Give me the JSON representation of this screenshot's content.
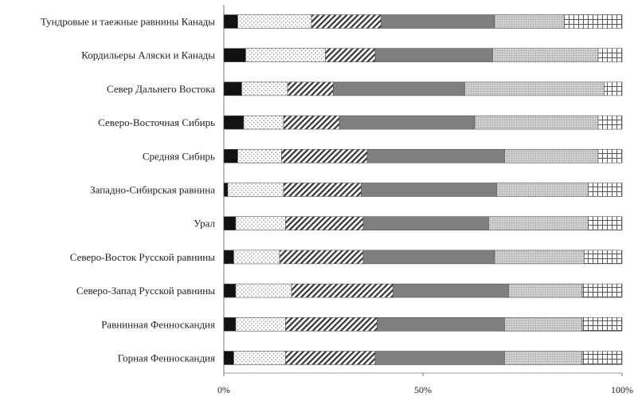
{
  "chart_data": {
    "type": "bar",
    "orientation": "horizontal",
    "stacked": "percent",
    "title": "",
    "xlabel": "",
    "ylabel": "",
    "xlim": [
      0,
      100
    ],
    "x_ticks": [
      "0%",
      "50%",
      "100%"
    ],
    "grid": false,
    "legend": "none",
    "categories": [
      "Тундровые и таежные равнины Канады",
      "Кордильеры Аляски и Канады",
      "Север Дальнего Востока",
      "Северо-Восточная Сибирь",
      "Средняя Сибирь",
      "Западно-Сибирская равнина",
      "Урал",
      "Северо-Восток Русской равнины",
      "Северо-Запад Русской равнины",
      "Равнинная Фенноскандия",
      "Горная Фенноскандия"
    ],
    "series": [
      {
        "values": [
          3.5,
          5.5,
          4.5,
          5.0,
          3.5,
          1.0,
          3.0,
          2.5,
          3.0,
          3.0,
          2.5
        ],
        "color": "#111111",
        "pattern": "solid"
      },
      {
        "values": [
          18.5,
          20.0,
          11.5,
          10.0,
          11.0,
          14.0,
          12.5,
          11.5,
          14.0,
          12.5,
          13.0
        ],
        "color": "#ffffff",
        "pattern": "dots"
      },
      {
        "values": [
          17.5,
          12.5,
          11.5,
          14.0,
          21.5,
          19.5,
          19.5,
          21.0,
          25.5,
          23.0,
          22.5
        ],
        "color": "#ffffff",
        "pattern": "diagonal"
      },
      {
        "values": [
          28.5,
          29.5,
          33.0,
          34.0,
          34.5,
          34.0,
          31.5,
          33.0,
          29.0,
          32.0,
          32.5
        ],
        "color": "#7f7f7f",
        "pattern": "solid"
      },
      {
        "values": [
          17.5,
          26.5,
          35.0,
          31.0,
          23.5,
          23.0,
          25.0,
          22.5,
          18.5,
          19.5,
          19.5
        ],
        "color": "#c4c4c4",
        "pattern": "dense-dots"
      },
      {
        "values": [
          14.5,
          6.0,
          4.5,
          6.0,
          6.0,
          8.5,
          8.5,
          9.5,
          10.0,
          10.0,
          10.0
        ],
        "color": "#ffffff",
        "pattern": "grid"
      }
    ]
  }
}
